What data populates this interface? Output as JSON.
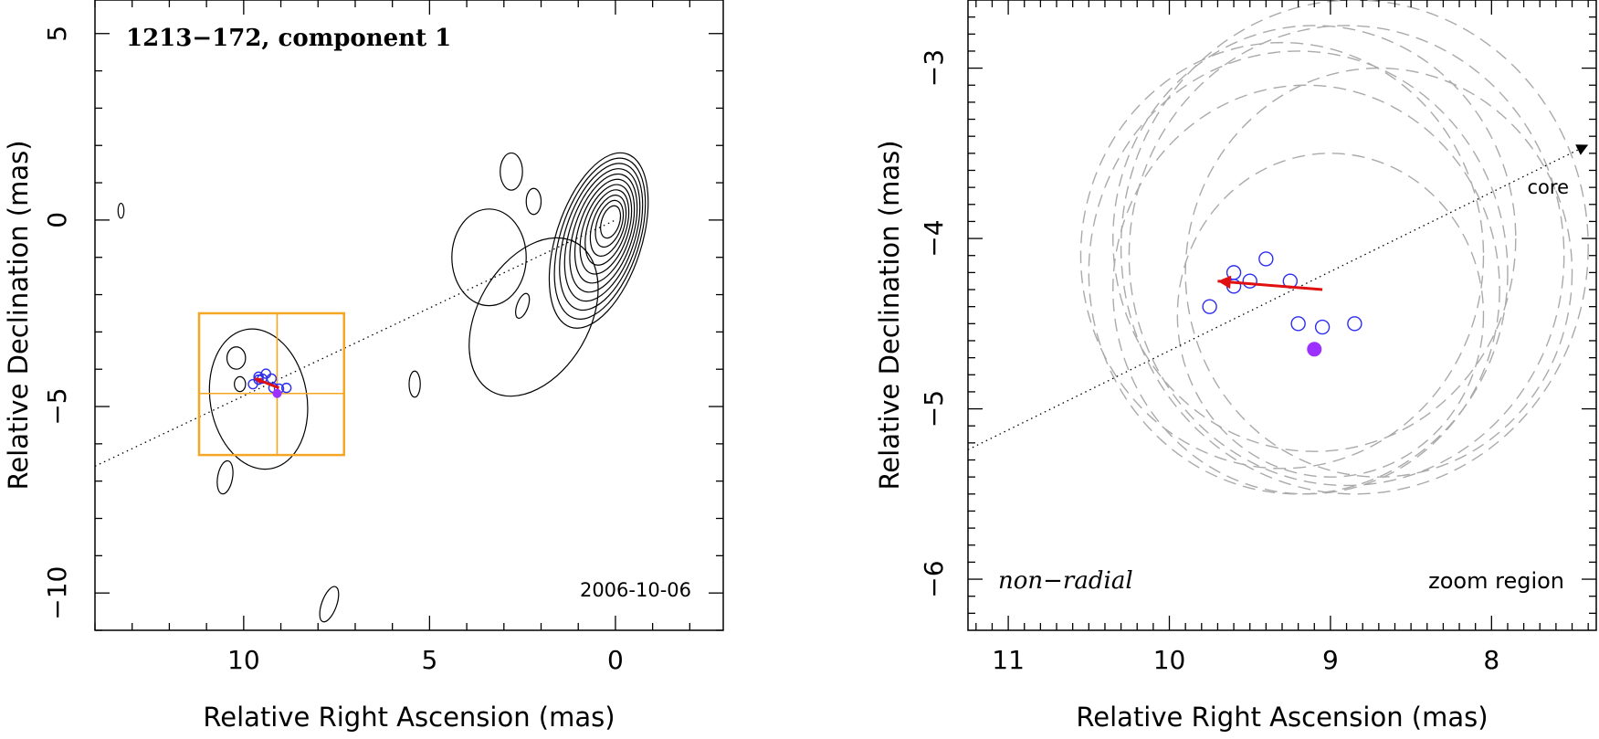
{
  "chart_data": [
    {
      "type": "scatter",
      "panel": "left",
      "title": "1213−172, component 1",
      "xlabel": "Relative Right Ascension (mas)",
      "ylabel": "Relative Declination (mas)",
      "date": "2006-10-06",
      "xlim": [
        14.0,
        -2.9
      ],
      "ylim": [
        -11.0,
        5.9
      ],
      "x_ticks": [
        10,
        5,
        0
      ],
      "x_tick_labels": [
        "10",
        "5",
        "0"
      ],
      "y_ticks": [
        5,
        0,
        -5,
        -10
      ],
      "y_tick_labels": [
        "5",
        "0",
        "−5",
        "−10"
      ],
      "contour_center": [
        0.1,
        0.0
      ],
      "contour_levels": 11,
      "core_direction_line": {
        "from": [
          14.0,
          -6.6
        ],
        "to": [
          0,
          0
        ]
      },
      "zoom_box": {
        "x_range": [
          11.2,
          7.3
        ],
        "y_range": [
          -2.5,
          -6.3
        ],
        "cross": [
          9.1,
          -4.65
        ]
      },
      "component_positions": [
        [
          9.75,
          -4.4
        ],
        [
          9.6,
          -4.2
        ],
        [
          9.5,
          -4.25
        ],
        [
          9.4,
          -4.12
        ],
        [
          9.25,
          -4.25
        ],
        [
          9.2,
          -4.5
        ],
        [
          9.05,
          -4.52
        ],
        [
          8.85,
          -4.5
        ],
        [
          9.6,
          -4.28
        ]
      ],
      "mean_position": [
        9.1,
        -4.65
      ],
      "motion_vector": {
        "from": [
          9.05,
          -4.5
        ],
        "to": [
          9.7,
          -4.25
        ]
      }
    },
    {
      "type": "scatter",
      "panel": "right",
      "xlabel": "Relative Right Ascension (mas)",
      "ylabel": "Relative Declination (mas)",
      "annotation_left": "non−radial",
      "annotation_right": "zoom region",
      "core_label": "core",
      "xlim": [
        11.25,
        7.35
      ],
      "ylim": [
        -6.3,
        -2.6
      ],
      "x_ticks": [
        11,
        10,
        9,
        8
      ],
      "x_tick_labels": [
        "11",
        "10",
        "9",
        "8"
      ],
      "y_ticks": [
        -3,
        -4,
        -5,
        -6
      ],
      "y_tick_labels": [
        "−3",
        "−4",
        "−5",
        "−6"
      ],
      "core_direction_line": {
        "from": [
          11.25,
          -5.24
        ],
        "to": [
          7.4,
          -3.45
        ]
      },
      "component_positions": [
        [
          9.75,
          -4.4
        ],
        [
          9.6,
          -4.2
        ],
        [
          9.5,
          -4.25
        ],
        [
          9.4,
          -4.12
        ],
        [
          9.25,
          -4.25
        ],
        [
          9.2,
          -4.5
        ],
        [
          9.05,
          -4.52
        ],
        [
          8.85,
          -4.5
        ],
        [
          9.6,
          -4.28
        ]
      ],
      "mean_position": [
        9.1,
        -4.65
      ],
      "motion_vector": {
        "from": [
          9.05,
          -4.3
        ],
        "to": [
          9.7,
          -4.25
        ]
      },
      "beam_circles": [
        {
          "x": 9.1,
          "y": -4.0,
          "r": 1.25
        },
        {
          "x": 8.9,
          "y": -4.1,
          "r": 1.35
        },
        {
          "x": 9.15,
          "y": -4.3,
          "r": 1.2
        },
        {
          "x": 8.85,
          "y": -4.05,
          "r": 1.45
        },
        {
          "x": 9.2,
          "y": -4.2,
          "r": 1.3
        },
        {
          "x": 9.3,
          "y": -4.1,
          "r": 1.25
        },
        {
          "x": 8.7,
          "y": -4.2,
          "r": 1.2
        },
        {
          "x": 9.0,
          "y": -4.45,
          "r": 0.95
        }
      ]
    }
  ],
  "colors": {
    "axis": "#000000",
    "contour": "#000000",
    "zoom_box": "#f5a623",
    "component": "#2d2df0",
    "mean": "#9b30ff",
    "vector": "#e01010",
    "beam": "#aaaaaa"
  }
}
